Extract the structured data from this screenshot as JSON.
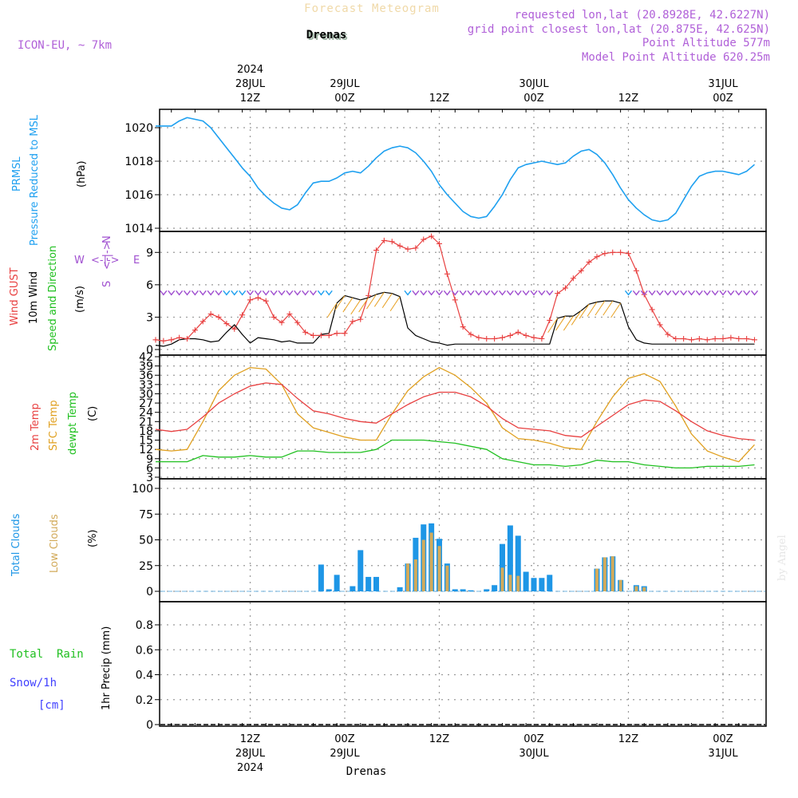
{
  "header": {
    "title_faint": "Forecast Meteogram",
    "location": "Drenas",
    "model": "ICON-EU, ~ 7km",
    "requested": "requested lon,lat (20.8928E, 42.6227N)",
    "gridpoint": "grid point closest lon,lat (20.875E, 42.625N)",
    "point_alt": "Point Altitude 577m",
    "model_alt": "Model Point Altitude 620.25m",
    "credit": "by Angel",
    "footer_location": "Drenas"
  },
  "colors": {
    "pressure": "#1ea0f0",
    "gust": "#e84040",
    "wind": "#000000",
    "temp": "#e84040",
    "sfc": "#e0a020",
    "dewpt": "#20c020",
    "total_cloud": "#1e96e6",
    "low_cloud": "#d2aa5a",
    "purple": "#a050d0",
    "rain": "#20c020",
    "snow": "#4040ff"
  },
  "time_axis": {
    "top_labels": [
      {
        "line1": "2024",
        "line2": "28JUL",
        "line3": "12Z",
        "h": 12
      },
      {
        "line1": "",
        "line2": "29JUL",
        "line3": "00Z",
        "h": 24
      },
      {
        "line1": "",
        "line2": "",
        "line3": "12Z",
        "h": 36
      },
      {
        "line1": "",
        "line2": "30JUL",
        "line3": "00Z",
        "h": 48
      },
      {
        "line1": "",
        "line2": "",
        "line3": "12Z",
        "h": 60
      },
      {
        "line1": "",
        "line2": "31JUL",
        "line3": "00Z",
        "h": 72
      }
    ],
    "bottom_labels": [
      {
        "line1": "12Z",
        "line2": "28JUL",
        "line3": "2024",
        "h": 12
      },
      {
        "line1": "00Z",
        "line2": "29JUL",
        "line3": "",
        "h": 24
      },
      {
        "line1": "12Z",
        "line2": "",
        "line3": "",
        "h": 36
      },
      {
        "line1": "00Z",
        "line2": "30JUL",
        "line3": "",
        "h": 48
      },
      {
        "line1": "12Z",
        "line2": "",
        "line3": "",
        "h": 60
      },
      {
        "line1": "00Z",
        "line2": "31JUL",
        "line3": "",
        "h": 72
      }
    ]
  },
  "chart_data": [
    {
      "type": "line",
      "title": "PRMSL Pressure Reduced to MSL",
      "ylabel": "(hPa)",
      "legend": [
        "PRMSL",
        "Pressure Reduced to MSL"
      ],
      "ylim": [
        1014,
        1021
      ],
      "yticks": [
        1014,
        1016,
        1018,
        1020
      ],
      "x_hours": [
        0,
        2,
        3,
        4,
        5,
        6,
        7,
        8,
        9,
        10,
        11,
        12,
        13,
        14,
        15,
        16,
        17,
        18,
        19,
        20,
        21,
        22,
        23,
        24,
        25,
        26,
        27,
        28,
        29,
        30,
        31,
        32,
        33,
        34,
        35,
        36,
        37,
        38,
        39,
        40,
        41,
        42,
        43,
        44,
        45,
        46,
        47,
        48,
        49,
        50,
        51,
        52,
        53,
        54,
        55,
        56,
        57,
        58,
        59,
        60,
        61,
        62,
        63,
        64,
        65,
        66,
        67,
        68,
        69,
        70,
        71,
        72,
        73,
        74,
        75,
        76
      ],
      "series": [
        {
          "name": "PRMSL",
          "values": [
            1020.1,
            1020.1,
            1020.4,
            1020.6,
            1020.5,
            1020.4,
            1020.0,
            1019.4,
            1018.8,
            1018.2,
            1017.6,
            1017.1,
            1016.4,
            1015.9,
            1015.5,
            1015.2,
            1015.1,
            1015.4,
            1016.1,
            1016.7,
            1016.8,
            1016.8,
            1017.0,
            1017.3,
            1017.4,
            1017.3,
            1017.7,
            1018.2,
            1018.6,
            1018.8,
            1018.9,
            1018.8,
            1018.5,
            1018.0,
            1017.4,
            1016.6,
            1016.0,
            1015.5,
            1015.0,
            1014.7,
            1014.6,
            1014.7,
            1015.3,
            1016.0,
            1016.9,
            1017.6,
            1017.8,
            1017.9,
            1018.0,
            1017.9,
            1017.8,
            1017.9,
            1018.3,
            1018.6,
            1018.7,
            1018.4,
            1017.9,
            1017.2,
            1016.4,
            1015.7,
            1015.2,
            1014.8,
            1014.5,
            1014.4,
            1014.5,
            1014.9,
            1015.7,
            1016.5,
            1017.1,
            1017.3,
            1017.4,
            1017.4,
            1017.3,
            1017.2,
            1017.4,
            1017.8
          ]
        }
      ]
    },
    {
      "type": "line",
      "title": "Wind GUST / 10m Wind Speed and Direction",
      "ylabel": "(m/s)",
      "legend": [
        "Wind GUST",
        "10m Wind",
        "Speed and Direction"
      ],
      "compass": [
        "N",
        "S",
        "W",
        "E",
        "<-|->"
      ],
      "ylim": [
        0,
        10.5
      ],
      "yticks": [
        0,
        3,
        6,
        9
      ],
      "x_hours": [
        0,
        1,
        2,
        3,
        4,
        5,
        6,
        7,
        8,
        9,
        10,
        11,
        12,
        13,
        14,
        15,
        16,
        17,
        18,
        19,
        20,
        21,
        22,
        23,
        24,
        25,
        26,
        27,
        28,
        29,
        30,
        31,
        32,
        33,
        34,
        35,
        36,
        37,
        38,
        39,
        40,
        41,
        42,
        43,
        44,
        45,
        46,
        47,
        48,
        49,
        50,
        51,
        52,
        53,
        54,
        55,
        56,
        57,
        58,
        59,
        60,
        61,
        62,
        63,
        64,
        65,
        66,
        67,
        68,
        69,
        70,
        71,
        72,
        73,
        74,
        75,
        76
      ],
      "series": [
        {
          "name": "Wind GUST",
          "values": [
            0.9,
            0.8,
            0.9,
            1.1,
            1.0,
            1.8,
            2.6,
            3.3,
            3.0,
            2.4,
            1.9,
            3.2,
            4.6,
            4.8,
            4.5,
            3.0,
            2.5,
            3.3,
            2.5,
            1.6,
            1.3,
            1.3,
            1.3,
            1.5,
            1.5,
            2.6,
            2.8,
            5.0,
            9.2,
            10.1,
            10.0,
            9.6,
            9.3,
            9.4,
            10.2,
            10.5,
            9.8,
            7.0,
            4.6,
            2.1,
            1.4,
            1.1,
            1.0,
            1.0,
            1.1,
            1.3,
            1.6,
            1.3,
            1.1,
            1.0,
            2.7,
            5.2,
            5.7,
            6.6,
            7.3,
            8.1,
            8.6,
            8.9,
            9.0,
            9.0,
            8.9,
            7.3,
            5.1,
            3.7,
            2.3,
            1.4,
            1.0,
            1.0,
            0.9,
            1.0,
            0.9,
            1.0,
            1.0,
            1.1,
            1.0,
            1.0,
            0.9
          ]
        },
        {
          "name": "10m Wind",
          "values": [
            0.4,
            0.3,
            0.5,
            0.9,
            1.0,
            1.0,
            0.9,
            0.7,
            0.8,
            1.6,
            2.3,
            1.4,
            0.6,
            1.1,
            1.0,
            0.9,
            0.7,
            0.8,
            0.6,
            0.6,
            0.6,
            1.4,
            1.5,
            4.3,
            5.0,
            4.8,
            4.6,
            4.8,
            5.1,
            5.3,
            5.2,
            4.9,
            2.0,
            1.3,
            1.0,
            0.7,
            0.6,
            0.4,
            0.5,
            0.5,
            0.5,
            0.5,
            0.5,
            0.5,
            0.5,
            0.5,
            0.5,
            0.5,
            0.5,
            0.5,
            0.5,
            2.9,
            3.1,
            3.1,
            3.6,
            4.2,
            4.4,
            4.5,
            4.5,
            4.3,
            2.1,
            0.9,
            0.6,
            0.5,
            0.5,
            0.5,
            0.5,
            0.5,
            0.5,
            0.5,
            0.5,
            0.5,
            0.5,
            0.5,
            0.5,
            0.5,
            0.5
          ]
        }
      ]
    },
    {
      "type": "line",
      "title": "2m Temp / SFC Temp / dewpt Temp",
      "ylabel": "(C)",
      "legend": [
        "2m Temp",
        "SFC Temp",
        "dewpt Temp"
      ],
      "ylim": [
        3,
        42
      ],
      "yticks": [
        3,
        6,
        9,
        12,
        15,
        18,
        21,
        24,
        27,
        30,
        33,
        36,
        39,
        42
      ],
      "x_hours": [
        0,
        2,
        4,
        6,
        8,
        10,
        12,
        14,
        16,
        18,
        20,
        22,
        24,
        26,
        28,
        30,
        32,
        34,
        36,
        38,
        40,
        42,
        44,
        46,
        48,
        50,
        52,
        54,
        56,
        58,
        60,
        62,
        64,
        66,
        68,
        70,
        72,
        74,
        76
      ],
      "series": [
        {
          "name": "2m Temp",
          "values": [
            18.5,
            17.8,
            18.5,
            22.5,
            27.0,
            30.0,
            32.5,
            33.5,
            33.0,
            28.5,
            24.5,
            23.5,
            22.0,
            21.0,
            20.5,
            23.5,
            26.5,
            29.0,
            30.5,
            30.5,
            29.0,
            26.0,
            22.0,
            19.0,
            18.5,
            18.0,
            16.5,
            16.0,
            19.5,
            23.0,
            26.5,
            28.0,
            27.5,
            24.5,
            21.0,
            18.0,
            16.5,
            15.5,
            15.0
          ]
        },
        {
          "name": "SFC Temp",
          "values": [
            12.0,
            11.5,
            12.0,
            21.0,
            31.0,
            36.0,
            38.5,
            38.0,
            33.0,
            23.5,
            19.0,
            17.5,
            16.0,
            15.0,
            15.0,
            23.5,
            31.0,
            35.5,
            38.5,
            36.0,
            32.0,
            27.0,
            19.0,
            15.5,
            15.0,
            14.0,
            12.5,
            12.0,
            21.0,
            29.0,
            35.0,
            36.5,
            34.0,
            26.0,
            17.0,
            11.5,
            9.5,
            8.0,
            13.5
          ]
        },
        {
          "name": "dewpt Temp",
          "values": [
            8.0,
            8.0,
            8.0,
            10.0,
            9.5,
            9.5,
            10.0,
            9.5,
            9.5,
            11.5,
            11.5,
            11.0,
            11.0,
            11.0,
            12.0,
            15.0,
            15.0,
            15.0,
            14.5,
            14.0,
            13.0,
            12.0,
            9.0,
            8.0,
            7.0,
            7.0,
            6.5,
            7.0,
            8.5,
            8.0,
            8.0,
            7.0,
            6.5,
            6.0,
            6.0,
            6.5,
            6.5,
            6.5,
            7.0
          ]
        }
      ]
    },
    {
      "type": "bar",
      "title": "Total Clouds / Low Clouds",
      "ylabel": "(%)",
      "legend": [
        "Total Clouds",
        "Low Clouds"
      ],
      "ylim": [
        -8,
        105
      ],
      "yticks": [
        0,
        25,
        50,
        75,
        100
      ],
      "x_hours": [
        21,
        22,
        23,
        25,
        26,
        27,
        28,
        29,
        31,
        32,
        33,
        34,
        35,
        36,
        37,
        38,
        39,
        40,
        42,
        43,
        44,
        45,
        46,
        47,
        48,
        49,
        50,
        51,
        52,
        56,
        57,
        58,
        59,
        60,
        61,
        62
      ],
      "series": [
        {
          "name": "Total Clouds",
          "values": [
            26,
            2,
            16,
            5,
            40,
            14,
            14,
            0,
            4,
            27,
            52,
            65,
            66,
            51,
            27,
            2,
            2,
            1,
            2,
            6,
            46,
            64,
            54,
            19,
            13,
            13,
            16,
            0,
            0,
            22,
            33,
            34,
            11,
            0,
            6,
            5
          ]
        },
        {
          "name": "Low Clouds",
          "values": [
            0,
            0,
            0,
            0,
            0,
            0,
            0,
            0,
            0,
            27,
            31,
            50,
            57,
            44,
            25,
            0,
            0,
            0,
            0,
            0,
            23,
            16,
            15,
            0,
            0,
            0,
            0,
            0,
            0,
            22,
            33,
            34,
            11,
            0,
            5,
            4
          ]
        }
      ]
    },
    {
      "type": "bar",
      "title": "1hr Precip (mm)",
      "ylabel": "1hr Precip (mm)",
      "legend": [
        "Total  Rain",
        "Snow/1h",
        "[cm]"
      ],
      "ylim": [
        0,
        1.0
      ],
      "yticks": [
        0,
        0.2,
        0.4,
        0.6,
        0.8
      ],
      "ytick_labels": [
        "0",
        "0.2",
        "0.4",
        "0.6",
        "0.8"
      ],
      "x_hours": [],
      "series": [
        {
          "name": "Total Rain",
          "values": []
        }
      ]
    }
  ]
}
